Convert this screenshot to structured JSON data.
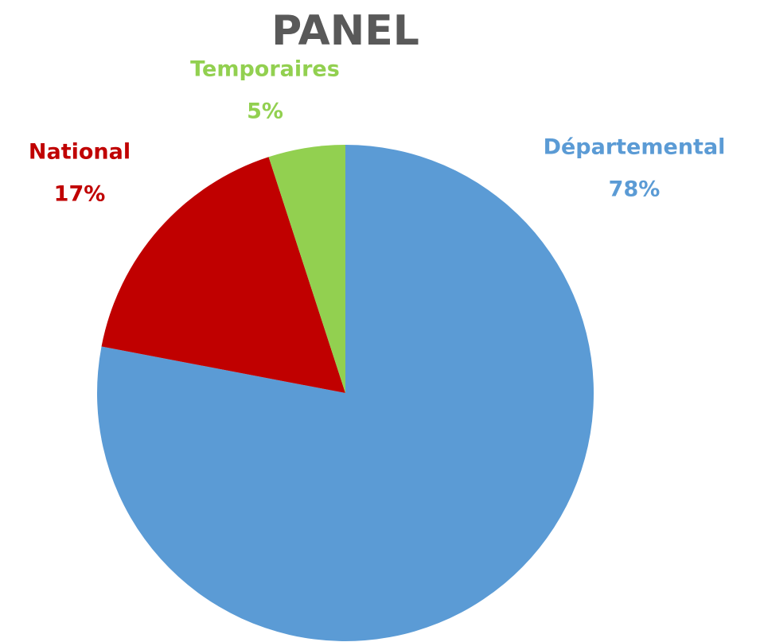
{
  "chart_data": {
    "type": "pie",
    "title": "PANEL",
    "categories": [
      "Départemental",
      "National",
      "Temporaires"
    ],
    "values": [
      78,
      17,
      5
    ],
    "value_labels": [
      "78%",
      "17%",
      "5%"
    ],
    "colors": [
      "#5b9bd5",
      "#c00000",
      "#92d050"
    ]
  }
}
